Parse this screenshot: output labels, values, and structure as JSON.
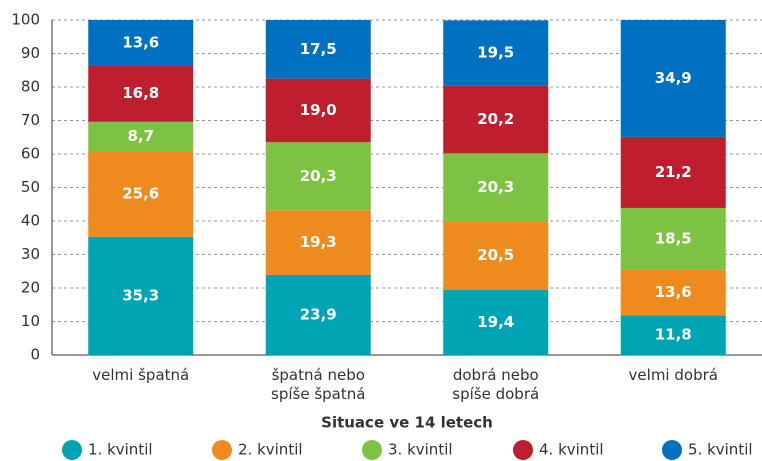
{
  "chart_data": {
    "type": "stacked_bar",
    "x_label": "Situace ve 14 letech",
    "categories": [
      "velmi špatná",
      "špatná nebo\nspíše špatná",
      "dobrá nebo\nspíše dobrá",
      "velmi dobrá"
    ],
    "series": [
      {
        "name": "1. kvintil",
        "color": "#00a5b5",
        "values": [
          35.3,
          23.9,
          19.4,
          11.8
        ],
        "value_labels": [
          "35,3",
          "23,9",
          "19,4",
          "11,8"
        ]
      },
      {
        "name": "2. kvintil",
        "color": "#ef8a1f",
        "values": [
          25.6,
          19.3,
          20.5,
          13.6
        ],
        "value_labels": [
          "25,6",
          "19,3",
          "20,5",
          "13,6"
        ]
      },
      {
        "name": "3. kvintil",
        "color": "#7dc242",
        "values": [
          8.7,
          20.3,
          20.3,
          18.5
        ],
        "value_labels": [
          "8,7",
          "20,3",
          "20,3",
          "18,5"
        ]
      },
      {
        "name": "4. kvintil",
        "color": "#be1e2d",
        "values": [
          16.8,
          19.0,
          20.2,
          21.2
        ],
        "value_labels": [
          "16,8",
          "19,0",
          "20,2",
          "21,2"
        ]
      },
      {
        "name": "5. kvintil",
        "color": "#0070c0",
        "values": [
          13.6,
          17.5,
          19.5,
          34.9
        ],
        "value_labels": [
          "13,6",
          "17,5",
          "19,5",
          "34,9"
        ]
      }
    ],
    "ylim": [
      0,
      100
    ],
    "yticks": [
      0,
      10,
      20,
      30,
      40,
      50,
      60,
      70,
      80,
      90,
      100
    ],
    "grid": true,
    "legend": "bottom"
  }
}
